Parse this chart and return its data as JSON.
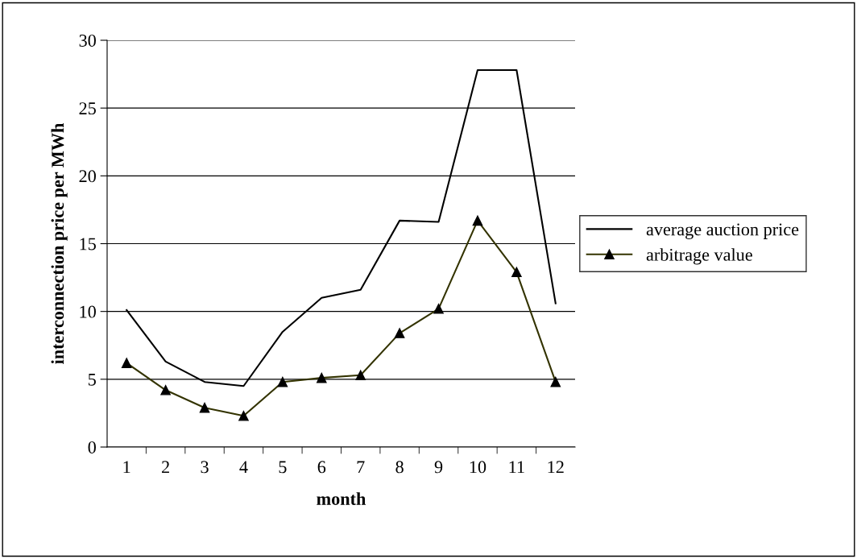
{
  "chart_data": {
    "type": "line",
    "xlabel": "month",
    "ylabel": "interconnection price per MWh",
    "categories": [
      "1",
      "2",
      "3",
      "4",
      "5",
      "6",
      "7",
      "8",
      "9",
      "10",
      "11",
      "12"
    ],
    "series": [
      {
        "name": "average auction price",
        "color": "#000000",
        "marker": "none",
        "values": [
          10.1,
          6.3,
          4.8,
          4.5,
          8.5,
          11.0,
          11.6,
          16.7,
          16.6,
          27.8,
          27.8,
          10.6
        ]
      },
      {
        "name": "arbitrage value",
        "color": "#333300",
        "marker": "triangle",
        "values": [
          6.2,
          4.2,
          2.9,
          2.3,
          4.8,
          5.1,
          5.3,
          8.4,
          10.2,
          16.7,
          12.9,
          4.8
        ]
      }
    ],
    "ylim": [
      0,
      30
    ],
    "yticks": [
      0,
      5,
      10,
      15,
      20,
      25,
      30
    ],
    "grid": "y",
    "legend": "right"
  }
}
